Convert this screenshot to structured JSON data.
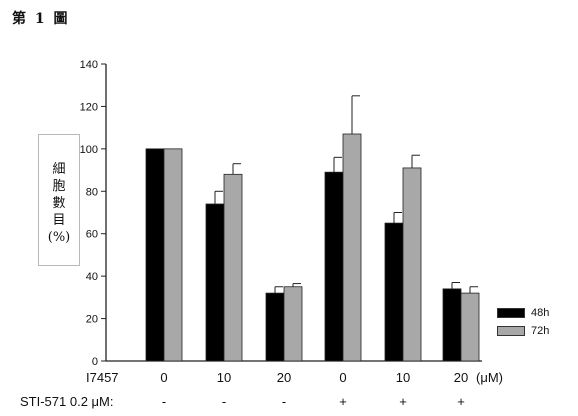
{
  "figure_label": "第 1 圖",
  "chart_data": {
    "type": "bar",
    "ylabel": "細胞數目(%)",
    "ylim": [
      0,
      140
    ],
    "yticks": [
      0,
      20,
      40,
      60,
      80,
      100,
      120,
      140
    ],
    "grid": false,
    "legend_placement": "bottom-right",
    "categories": [
      "0 / -",
      "10 / -",
      "20 / -",
      "0 / +",
      "10 / +",
      "20 / +"
    ],
    "series": [
      {
        "name": "48h",
        "color": "#000000",
        "values": [
          100,
          74,
          32,
          89,
          65,
          34
        ],
        "errors": [
          0,
          6,
          3,
          7,
          5,
          3
        ]
      },
      {
        "name": "72h",
        "color": "#a8a8a8",
        "values": [
          100,
          88,
          35,
          107,
          91,
          32
        ],
        "errors": [
          0,
          5,
          1.5,
          18,
          6,
          3
        ]
      }
    ]
  },
  "row1": {
    "label": "I7457",
    "values": [
      "0",
      "10",
      "20",
      "0",
      "10",
      "20"
    ],
    "unit": "(μM)"
  },
  "row2": {
    "label": "STI-571 0.2 μM:",
    "values": [
      "-",
      "-",
      "-",
      "+",
      "+",
      "+"
    ]
  }
}
